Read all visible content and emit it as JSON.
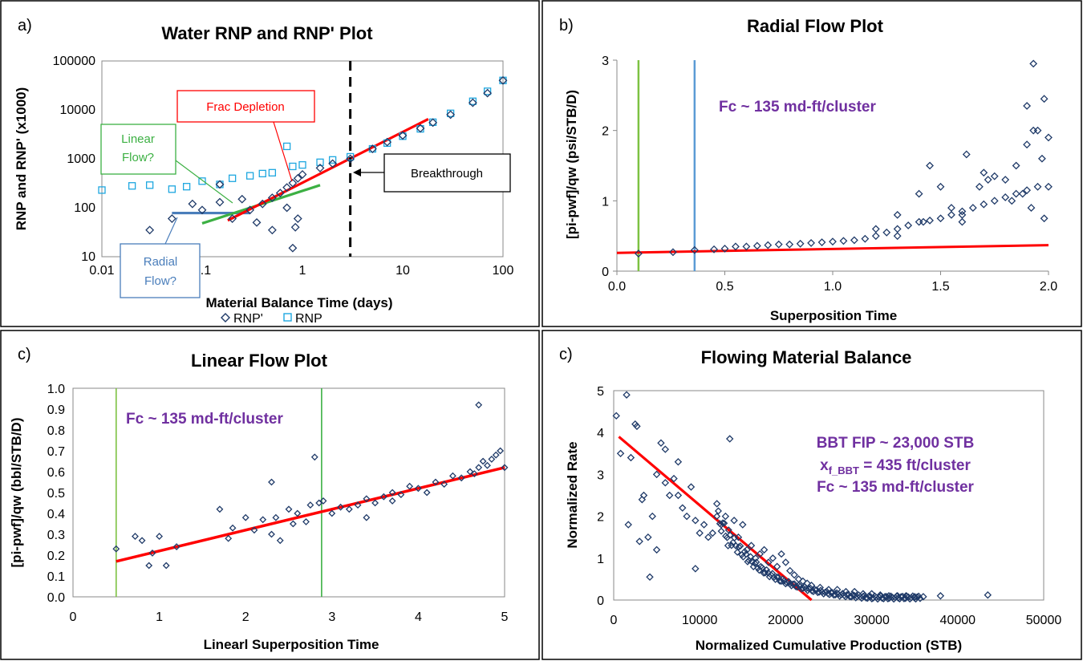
{
  "colors": {
    "rnp_prime": "#1f3a68",
    "rnp": "#1ea7e0",
    "fit_line": "#ff0000",
    "linear_callout": "#3cb043",
    "radial_callout": "#4a7ebb",
    "frac_callout": "#ff0000",
    "annotation_purple": "#7030a0",
    "green_vline": "#7dc242",
    "blue_vline": "#5b9bd5",
    "dark_green_vline": "#3cb043"
  },
  "panels": {
    "a": {
      "letter": "a)",
      "title": "Water RNP and RNP' Plot",
      "xlabel": "Material Balance Time (days)",
      "ylabel": "RNP and RNP' (x1000)",
      "xticks": [
        "0.01",
        "0.1",
        "1",
        "10",
        "100"
      ],
      "yticks": [
        "10",
        "100",
        "1000",
        "10000",
        "100000"
      ],
      "legend": {
        "rnp_prime": "RNP'",
        "rnp": "RNP"
      },
      "callouts": {
        "frac": "Frac Depletion",
        "linear_1": "Linear",
        "linear_2": "Flow?",
        "radial_1": "Radial",
        "radial_2": "Flow?",
        "breakthrough": "Breakthrough"
      }
    },
    "b": {
      "letter": "b)",
      "title": "Radial Flow Plot",
      "xlabel": "Superposition Time",
      "ylabel": "[pi-pwf]/qw (psi/STB/D)",
      "xticks": [
        "0.0",
        "0.5",
        "1.0",
        "1.5",
        "2.0"
      ],
      "yticks": [
        "0",
        "1",
        "2",
        "3"
      ],
      "note": "Fc ~ 135 md-ft/cluster"
    },
    "c": {
      "letter": "c)",
      "title": "Linear Flow Plot",
      "xlabel": "Linearl Superposition Time",
      "ylabel": "[pi-pwf]/qw (bbl/STB/D)",
      "xticks": [
        "0",
        "1",
        "2",
        "3",
        "4",
        "5"
      ],
      "yticks": [
        "0.0",
        "0.1",
        "0.2",
        "0.3",
        "0.4",
        "0.5",
        "0.6",
        "0.7",
        "0.8",
        "0.9",
        "1.0"
      ],
      "note": "Fc ~ 135 md-ft/cluster"
    },
    "d": {
      "letter": "c)",
      "title": "Flowing Material Balance",
      "xlabel": "Normalized Cumulative Production (STB)",
      "ylabel": "Normalized Rate",
      "xticks": [
        "0",
        "10000",
        "20000",
        "30000",
        "40000",
        "50000"
      ],
      "yticks": [
        "0",
        "1",
        "2",
        "3",
        "4",
        "5"
      ],
      "note_1": "BBT FIP ~ 23,000 STB",
      "note_2_main": "x",
      "note_2_sub": "f_BBT",
      "note_2_rest": " = 435 ft/cluster",
      "note_3": "Fc ~ 135 md-ft/cluster"
    }
  },
  "chart_data": [
    {
      "panel": "a",
      "type": "scatter",
      "title": "Water RNP and RNP' Plot",
      "xlabel": "Material Balance Time (days)",
      "ylabel": "RNP and RNP' (x1000)",
      "xscale": "log",
      "yscale": "log",
      "xlim": [
        0.01,
        100
      ],
      "ylim": [
        10,
        100000
      ],
      "legend_position": "bottom",
      "series": [
        {
          "name": "RNP'",
          "marker": "diamond-open",
          "x": [
            0.03,
            0.05,
            0.08,
            0.1,
            0.15,
            0.2,
            0.3,
            0.4,
            0.5,
            0.6,
            0.7,
            0.8,
            0.9,
            1,
            1.5,
            2,
            3,
            5,
            7,
            10,
            15,
            20,
            30,
            50,
            70,
            100,
            0.15,
            0.25,
            0.35,
            0.5,
            0.7,
            0.8,
            0.85,
            0.9
          ],
          "y": [
            35,
            60,
            120,
            90,
            130,
            60,
            90,
            120,
            160,
            200,
            260,
            320,
            400,
            480,
            650,
            800,
            1000,
            1600,
            2200,
            3000,
            4200,
            5500,
            8000,
            14000,
            22000,
            40000,
            300,
            150,
            50,
            35,
            100,
            15,
            40,
            60
          ]
        },
        {
          "name": "RNP",
          "marker": "square-open",
          "x": [
            0.01,
            0.02,
            0.03,
            0.05,
            0.07,
            0.1,
            0.15,
            0.2,
            0.3,
            0.4,
            0.5,
            0.7,
            0.8,
            1,
            1.5,
            2,
            3,
            5,
            7,
            10,
            15,
            20,
            30,
            50,
            70,
            100
          ],
          "y": [
            230,
            280,
            290,
            240,
            270,
            350,
            300,
            400,
            450,
            500,
            520,
            1800,
            700,
            750,
            850,
            950,
            1100,
            1600,
            2100,
            2900,
            4100,
            5600,
            8500,
            15000,
            24000,
            40000
          ]
        },
        {
          "name": "Radial fit",
          "type": "line",
          "x": [
            0.05,
            0.3
          ],
          "y": [
            78,
            78
          ]
        },
        {
          "name": "Linear fit",
          "type": "line",
          "x": [
            0.1,
            1.5
          ],
          "y": [
            48,
            290
          ]
        },
        {
          "name": "Frac depletion fit",
          "type": "line",
          "x": [
            0.18,
            18
          ],
          "y": [
            55,
            6500
          ]
        }
      ],
      "vline": {
        "x": 3,
        "style": "dashed"
      }
    },
    {
      "panel": "b",
      "type": "scatter",
      "title": "Radial Flow Plot",
      "xlabel": "Superposition Time",
      "ylabel": "[pi-pwf]/qw (psi/STB/D)",
      "xlim": [
        0,
        2
      ],
      "ylim": [
        0,
        3
      ],
      "series": [
        {
          "name": "",
          "marker": "diamond-open",
          "x": [
            0.1,
            0.26,
            0.36,
            0.45,
            0.5,
            0.55,
            0.6,
            0.65,
            0.7,
            0.75,
            0.8,
            0.85,
            0.9,
            0.95,
            1.0,
            1.05,
            1.1,
            1.15,
            1.2,
            1.25,
            1.3,
            1.35,
            1.4,
            1.45,
            1.5,
            1.55,
            1.6,
            1.65,
            1.7,
            1.75,
            1.8,
            1.85,
            1.9,
            1.95,
            2.0,
            1.2,
            1.3,
            1.4,
            1.5,
            1.6,
            1.7,
            1.8,
            1.85,
            1.9,
            1.95,
            1.3,
            1.42,
            1.55,
            1.68,
            1.75,
            1.83,
            1.92,
            1.97,
            2.0,
            1.45,
            1.6,
            1.72,
            1.88,
            1.93,
            1.98,
            1.93,
            1.98,
            1.62,
            1.9
          ],
          "y": [
            0.25,
            0.27,
            0.3,
            0.31,
            0.32,
            0.35,
            0.35,
            0.36,
            0.37,
            0.38,
            0.38,
            0.39,
            0.4,
            0.41,
            0.42,
            0.43,
            0.44,
            0.46,
            0.5,
            0.55,
            0.6,
            0.65,
            0.7,
            0.72,
            0.75,
            0.8,
            0.85,
            0.9,
            0.95,
            1.0,
            1.05,
            1.1,
            1.15,
            1.2,
            1.2,
            0.6,
            0.8,
            1.1,
            1.2,
            0.7,
            1.4,
            1.3,
            1.5,
            1.8,
            2.0,
            0.5,
            0.7,
            0.9,
            1.2,
            1.35,
            1.0,
            0.9,
            1.6,
            1.9,
            1.5,
            0.8,
            1.3,
            1.1,
            2.0,
            2.45,
            2.95,
            0.75,
            1.66,
            2.35
          ]
        },
        {
          "name": "Fit",
          "type": "line",
          "x": [
            0,
            2
          ],
          "y": [
            0.26,
            0.37
          ]
        }
      ],
      "vlines": [
        {
          "x": 0.1
        },
        {
          "x": 0.36
        }
      ]
    },
    {
      "panel": "c",
      "type": "scatter",
      "title": "Linear Flow Plot",
      "xlabel": "Linearl Superposition Time",
      "ylabel": "[pi-pwf]/qw (bbl/STB/D)",
      "xlim": [
        0,
        5
      ],
      "ylim": [
        0,
        1.0
      ],
      "series": [
        {
          "name": "",
          "marker": "diamond-open",
          "x": [
            0.5,
            0.72,
            0.8,
            0.88,
            0.92,
            1.0,
            1.08,
            1.2,
            1.7,
            1.8,
            1.85,
            2.0,
            2.1,
            2.2,
            2.3,
            2.35,
            2.4,
            2.5,
            2.6,
            2.7,
            2.8,
            2.85,
            2.9,
            3.0,
            3.1,
            3.2,
            3.3,
            3.4,
            3.5,
            3.6,
            3.7,
            3.8,
            3.9,
            4.0,
            4.1,
            4.2,
            4.3,
            4.4,
            4.5,
            4.6,
            4.65,
            4.7,
            4.75,
            4.8,
            4.85,
            4.9,
            4.95,
            5.0,
            2.3,
            2.55,
            2.75,
            3.4,
            3.7,
            4.7
          ],
          "y": [
            0.23,
            0.29,
            0.27,
            0.15,
            0.21,
            0.29,
            0.15,
            0.24,
            0.42,
            0.28,
            0.33,
            0.38,
            0.32,
            0.37,
            0.55,
            0.38,
            0.27,
            0.42,
            0.4,
            0.36,
            0.67,
            0.45,
            0.46,
            0.4,
            0.43,
            0.42,
            0.44,
            0.47,
            0.45,
            0.48,
            0.5,
            0.49,
            0.53,
            0.52,
            0.5,
            0.55,
            0.54,
            0.58,
            0.57,
            0.6,
            0.59,
            0.62,
            0.65,
            0.63,
            0.66,
            0.68,
            0.7,
            0.62,
            0.3,
            0.35,
            0.44,
            0.38,
            0.46,
            0.92
          ]
        },
        {
          "name": "Fit",
          "type": "line",
          "x": [
            0.5,
            5
          ],
          "y": [
            0.17,
            0.62
          ]
        }
      ],
      "vlines": [
        {
          "x": 0.5
        },
        {
          "x": 2.88
        }
      ]
    },
    {
      "panel": "d",
      "type": "scatter",
      "title": "Flowing Material Balance",
      "xlabel": "Normalized Cumulative Production (STB)",
      "ylabel": "Normalized Rate",
      "xlim": [
        0,
        50000
      ],
      "ylim": [
        0,
        5
      ],
      "series": [
        {
          "name": "",
          "marker": "diamond-open",
          "x": [
            300,
            800,
            1500,
            2000,
            2500,
            3000,
            3500,
            4000,
            4500,
            5000,
            5500,
            6000,
            6500,
            7000,
            7500,
            8000,
            8500,
            9000,
            9500,
            10000,
            10500,
            11000,
            11500,
            12000,
            12500,
            13000,
            13500,
            14000,
            14500,
            15000,
            15500,
            16000,
            16500,
            17000,
            17500,
            18000,
            18500,
            19000,
            19500,
            20000,
            20500,
            21000,
            21500,
            22000,
            22500,
            23000,
            24000,
            25000,
            26000,
            27000,
            28000,
            29000,
            30000,
            31000,
            32000,
            33000,
            34000,
            35000,
            36000,
            38000,
            43500,
            2700,
            1700,
            13300,
            5000,
            6000,
            4200,
            7500,
            9500,
            3300
          ],
          "y": [
            4.4,
            3.5,
            4.9,
            3.4,
            4.2,
            1.4,
            2.5,
            1.5,
            2.0,
            3.0,
            3.75,
            2.8,
            2.5,
            2.9,
            3.3,
            2.2,
            2.0,
            2.7,
            1.9,
            1.6,
            1.8,
            1.5,
            1.6,
            2.3,
            1.8,
            2.0,
            3.85,
            1.9,
            1.5,
            1.8,
            1.2,
            1.3,
            1.0,
            1.1,
            1.2,
            0.9,
            1.0,
            0.8,
            1.1,
            0.9,
            0.7,
            0.6,
            0.5,
            0.45,
            0.4,
            0.35,
            0.3,
            0.25,
            0.25,
            0.2,
            0.2,
            0.15,
            0.15,
            0.12,
            0.1,
            0.1,
            0.1,
            0.08,
            0.08,
            0.1,
            0.12,
            4.15,
            1.8,
            1.3,
            1.2,
            3.6,
            0.55,
            2.5,
            0.75,
            2.4
          ]
        },
        {
          "name": "Fit",
          "type": "line",
          "x": [
            600,
            23000
          ],
          "y": [
            3.9,
            0
          ]
        }
      ]
    }
  ]
}
